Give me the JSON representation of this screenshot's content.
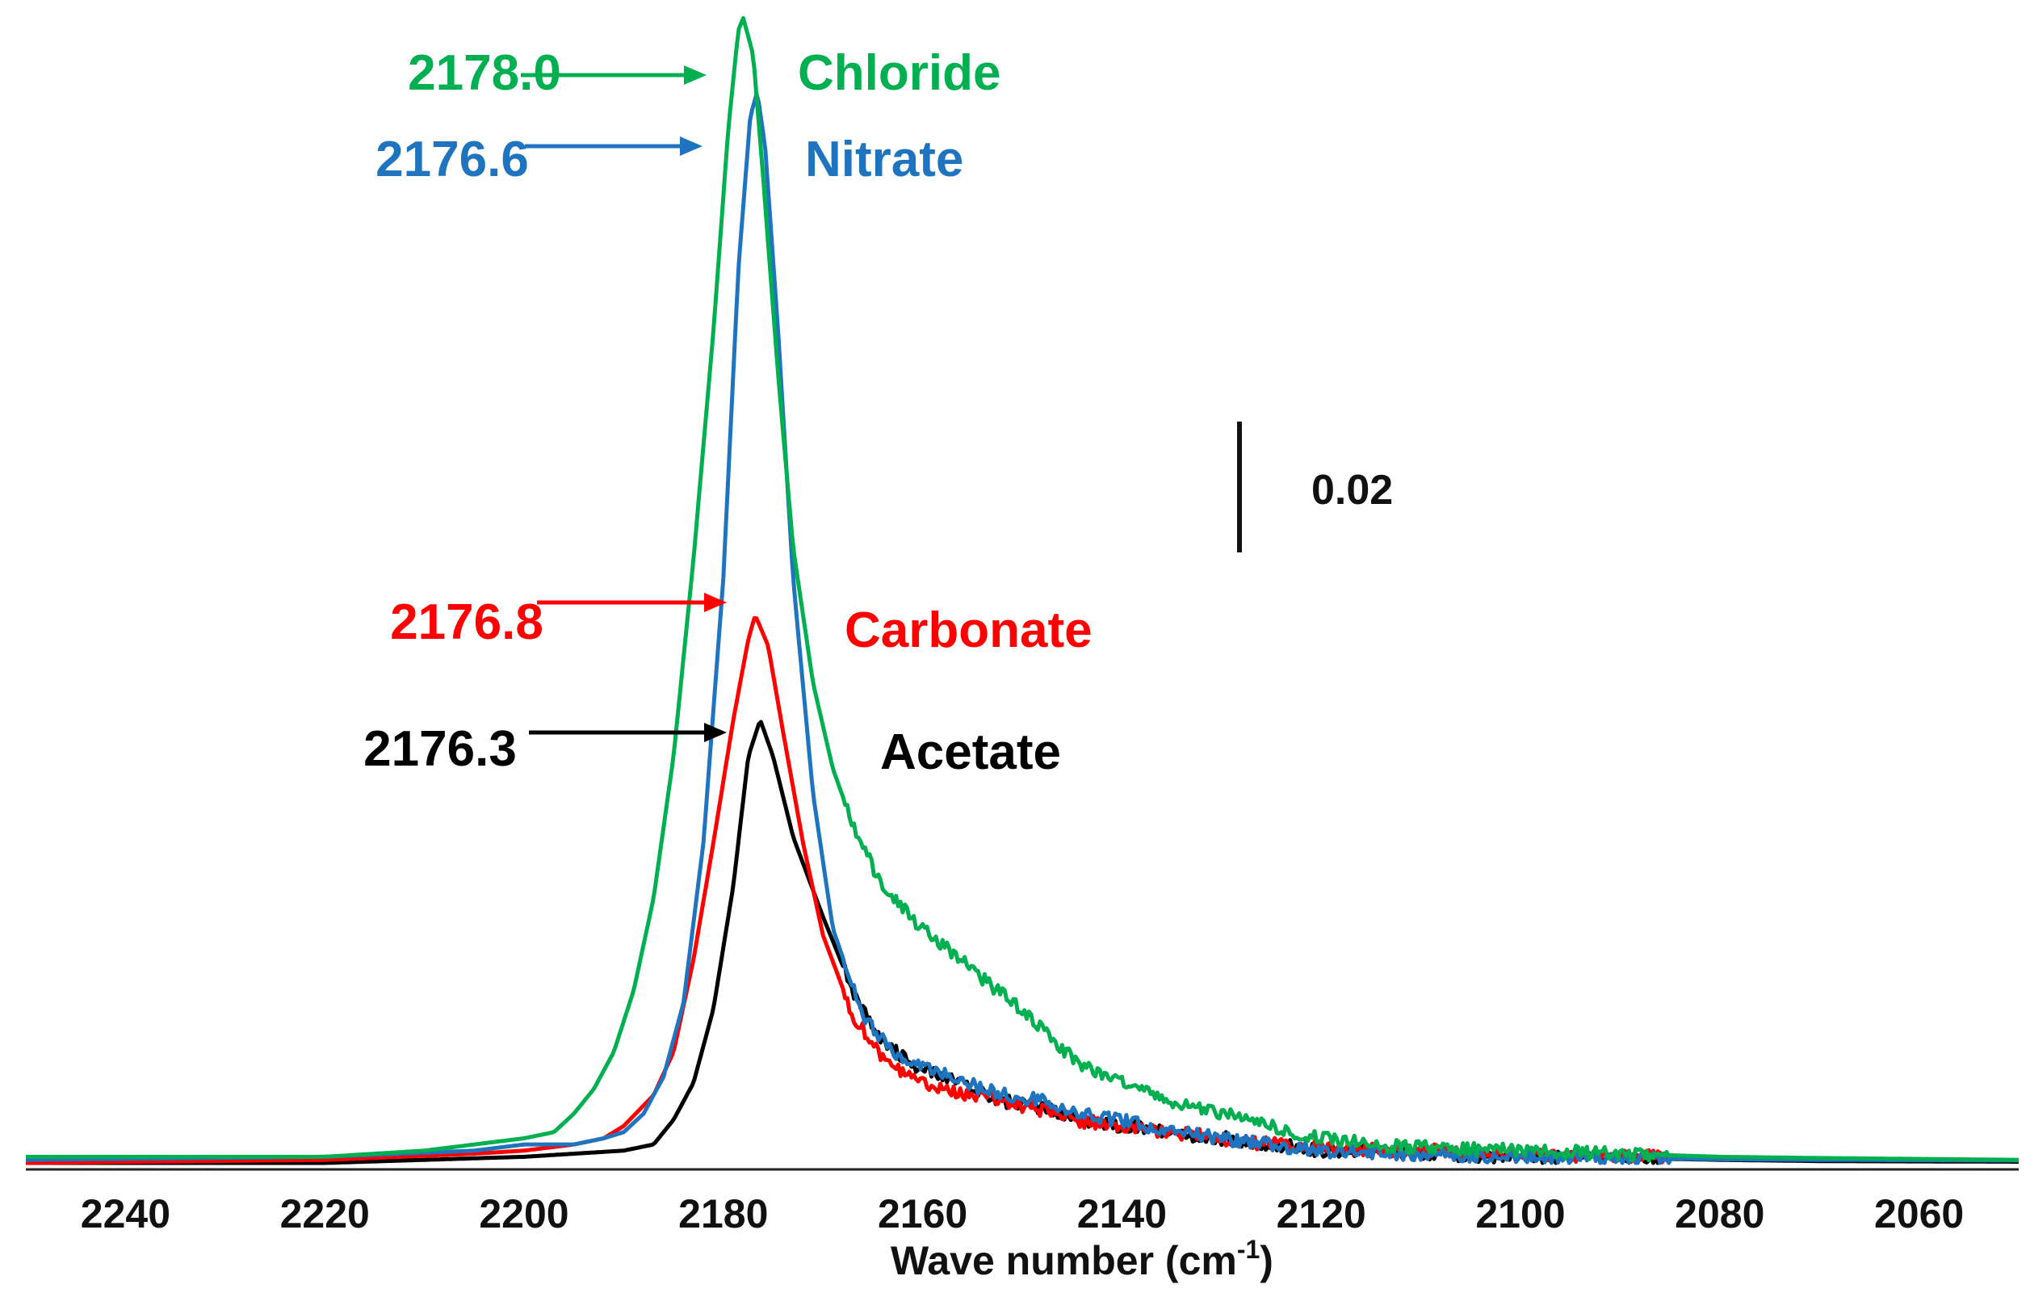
{
  "chart_data": {
    "type": "line",
    "title": "",
    "xlabel": "Wave number (cm",
    "xlabel_sup": "-1",
    "xlabel_close": ")",
    "ylabel": "",
    "x_reversed": true,
    "xlim": [
      2250,
      2050
    ],
    "ylim": [
      0,
      0.185
    ],
    "x_ticks": [
      2240,
      2220,
      2200,
      2180,
      2160,
      2140,
      2120,
      2100,
      2080,
      2060
    ],
    "scale_bar": {
      "value": 0.02,
      "label": "0.02"
    },
    "series": [
      {
        "name": "Acetate",
        "color": "#000000",
        "peak_label": "2176.3",
        "points": [
          [
            2250,
            0
          ],
          [
            2220,
            0
          ],
          [
            2200,
            0.001
          ],
          [
            2195,
            0.0015
          ],
          [
            2190,
            0.002
          ],
          [
            2187,
            0.003
          ],
          [
            2185,
            0.007
          ],
          [
            2183,
            0.013
          ],
          [
            2181,
            0.025
          ],
          [
            2179,
            0.045
          ],
          [
            2177.5,
            0.066
          ],
          [
            2176.3,
            0.072
          ],
          [
            2175,
            0.066
          ],
          [
            2173,
            0.053
          ],
          [
            2170,
            0.04
          ],
          [
            2167,
            0.028
          ],
          [
            2164,
            0.02
          ],
          [
            2161,
            0.016
          ],
          [
            2158,
            0.014
          ],
          [
            2155,
            0.012
          ],
          [
            2152,
            0.01
          ],
          [
            2148,
            0.009
          ],
          [
            2144,
            0.007
          ],
          [
            2140,
            0.006
          ],
          [
            2135,
            0.005
          ],
          [
            2130,
            0.004
          ],
          [
            2125,
            0.003
          ],
          [
            2120,
            0.002
          ],
          [
            2110,
            0.0015
          ],
          [
            2100,
            0.001
          ],
          [
            2090,
            0.0008
          ],
          [
            2080,
            0.0005
          ],
          [
            2070,
            0.0003
          ],
          [
            2050,
            0.0002
          ]
        ]
      },
      {
        "name": "Carbonate",
        "color": "#ff0000",
        "peak_label": "2176.8",
        "points": [
          [
            2250,
            0
          ],
          [
            2220,
            0.0005
          ],
          [
            2205,
            0.0015
          ],
          [
            2200,
            0.002
          ],
          [
            2195,
            0.003
          ],
          [
            2192,
            0.004
          ],
          [
            2190,
            0.006
          ],
          [
            2187,
            0.011
          ],
          [
            2185,
            0.018
          ],
          [
            2183,
            0.033
          ],
          [
            2181,
            0.052
          ],
          [
            2179,
            0.072
          ],
          [
            2177.5,
            0.085
          ],
          [
            2176.8,
            0.089
          ],
          [
            2175.5,
            0.084
          ],
          [
            2174,
            0.07
          ],
          [
            2172,
            0.052
          ],
          [
            2170,
            0.037
          ],
          [
            2167,
            0.024
          ],
          [
            2164,
            0.017
          ],
          [
            2161,
            0.014
          ],
          [
            2158,
            0.012
          ],
          [
            2155,
            0.011
          ],
          [
            2152,
            0.01
          ],
          [
            2149,
            0.009
          ],
          [
            2145,
            0.007
          ],
          [
            2140,
            0.006
          ],
          [
            2135,
            0.005
          ],
          [
            2130,
            0.004
          ],
          [
            2125,
            0.003
          ],
          [
            2120,
            0.0025
          ],
          [
            2110,
            0.002
          ],
          [
            2100,
            0.0015
          ],
          [
            2090,
            0.001
          ],
          [
            2080,
            0.0008
          ],
          [
            2070,
            0.0006
          ],
          [
            2060,
            0.0005
          ],
          [
            2050,
            0.0004
          ]
        ]
      },
      {
        "name": "Nitrate",
        "color": "#1f74c0",
        "peak_label": "2176.6",
        "points": [
          [
            2250,
            0.0005
          ],
          [
            2220,
            0.001
          ],
          [
            2205,
            0.002
          ],
          [
            2200,
            0.003
          ],
          [
            2195,
            0.003
          ],
          [
            2192,
            0.004
          ],
          [
            2190,
            0.005
          ],
          [
            2188,
            0.008
          ],
          [
            2186,
            0.014
          ],
          [
            2184,
            0.026
          ],
          [
            2182,
            0.052
          ],
          [
            2180,
            0.095
          ],
          [
            2178.5,
            0.145
          ],
          [
            2177.3,
            0.17
          ],
          [
            2176.6,
            0.174
          ],
          [
            2175.8,
            0.165
          ],
          [
            2174.5,
            0.135
          ],
          [
            2173,
            0.095
          ],
          [
            2171,
            0.06
          ],
          [
            2169,
            0.038
          ],
          [
            2166,
            0.024
          ],
          [
            2163,
            0.018
          ],
          [
            2160,
            0.016
          ],
          [
            2157,
            0.014
          ],
          [
            2154,
            0.012
          ],
          [
            2151,
            0.011
          ],
          [
            2148,
            0.01
          ],
          [
            2145,
            0.008
          ],
          [
            2140,
            0.007
          ],
          [
            2135,
            0.005
          ],
          [
            2130,
            0.004
          ],
          [
            2125,
            0.003
          ],
          [
            2120,
            0.002
          ],
          [
            2110,
            0.0015
          ],
          [
            2100,
            0.001
          ],
          [
            2090,
            0.0008
          ],
          [
            2080,
            0.0006
          ],
          [
            2070,
            0.0005
          ],
          [
            2050,
            0.0004
          ]
        ]
      },
      {
        "name": "Chloride",
        "color": "#00b050",
        "peak_label": "2178.0",
        "points": [
          [
            2250,
            0.001
          ],
          [
            2220,
            0.001
          ],
          [
            2210,
            0.002
          ],
          [
            2205,
            0.003
          ],
          [
            2200,
            0.004
          ],
          [
            2197,
            0.005
          ],
          [
            2195,
            0.008
          ],
          [
            2193,
            0.012
          ],
          [
            2191,
            0.018
          ],
          [
            2189,
            0.028
          ],
          [
            2187,
            0.043
          ],
          [
            2185,
            0.066
          ],
          [
            2183,
            0.098
          ],
          [
            2181,
            0.135
          ],
          [
            2179.5,
            0.168
          ],
          [
            2178.5,
            0.184
          ],
          [
            2178,
            0.186
          ],
          [
            2177,
            0.18
          ],
          [
            2176,
            0.16
          ],
          [
            2174.5,
            0.128
          ],
          [
            2173,
            0.1
          ],
          [
            2171,
            0.078
          ],
          [
            2169,
            0.064
          ],
          [
            2167,
            0.055
          ],
          [
            2165,
            0.048
          ],
          [
            2163,
            0.043
          ],
          [
            2160,
            0.038
          ],
          [
            2157,
            0.034
          ],
          [
            2154,
            0.03
          ],
          [
            2151,
            0.026
          ],
          [
            2148,
            0.022
          ],
          [
            2145,
            0.017
          ],
          [
            2142,
            0.014
          ],
          [
            2138,
            0.012
          ],
          [
            2135,
            0.01
          ],
          [
            2130,
            0.008
          ],
          [
            2125,
            0.006
          ],
          [
            2120,
            0.004
          ],
          [
            2115,
            0.003
          ],
          [
            2110,
            0.0025
          ],
          [
            2100,
            0.002
          ],
          [
            2090,
            0.0015
          ],
          [
            2080,
            0.001
          ],
          [
            2070,
            0.0008
          ],
          [
            2050,
            0.0005
          ]
        ]
      }
    ]
  }
}
